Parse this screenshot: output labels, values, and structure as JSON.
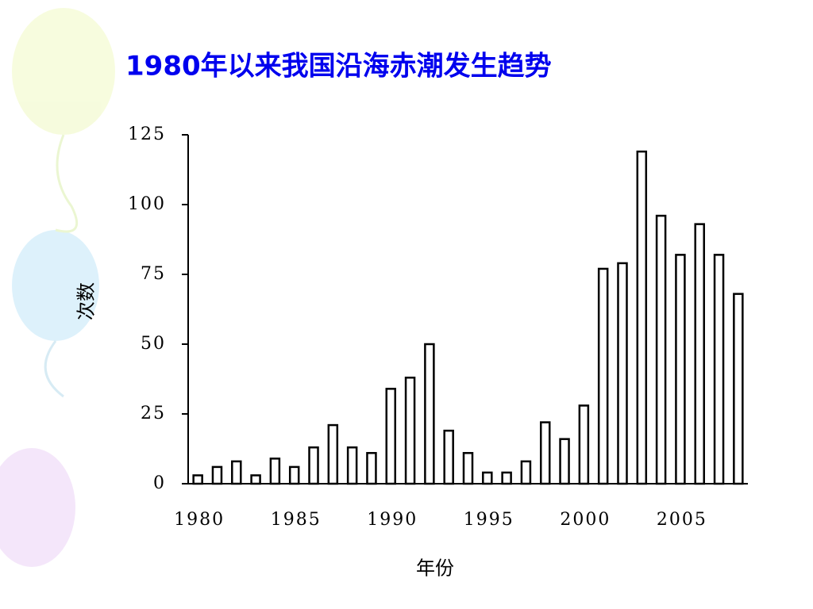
{
  "chart_data": {
    "type": "bar",
    "title": "1980年以来我国沿海赤潮发生趋势",
    "y_label": "次数",
    "x_label": "年份",
    "categories": [
      "1980",
      null,
      null,
      null,
      null,
      "1985",
      null,
      null,
      null,
      null,
      "1990",
      null,
      null,
      null,
      null,
      "1995",
      null,
      null,
      null,
      null,
      "2000",
      null,
      null,
      null,
      null,
      "2005",
      null,
      null,
      null
    ],
    "values": [
      3,
      6,
      8,
      3,
      9,
      6,
      13,
      21,
      13,
      11,
      34,
      38,
      50,
      19,
      11,
      4,
      4,
      8,
      22,
      16,
      28,
      77,
      79,
      119,
      96,
      82,
      93,
      82,
      68
    ],
    "color": "#ffffff",
    "ylim": [
      0,
      125
    ],
    "yticks": [
      0,
      25,
      50,
      75,
      100,
      125
    ],
    "grid": false
  }
}
